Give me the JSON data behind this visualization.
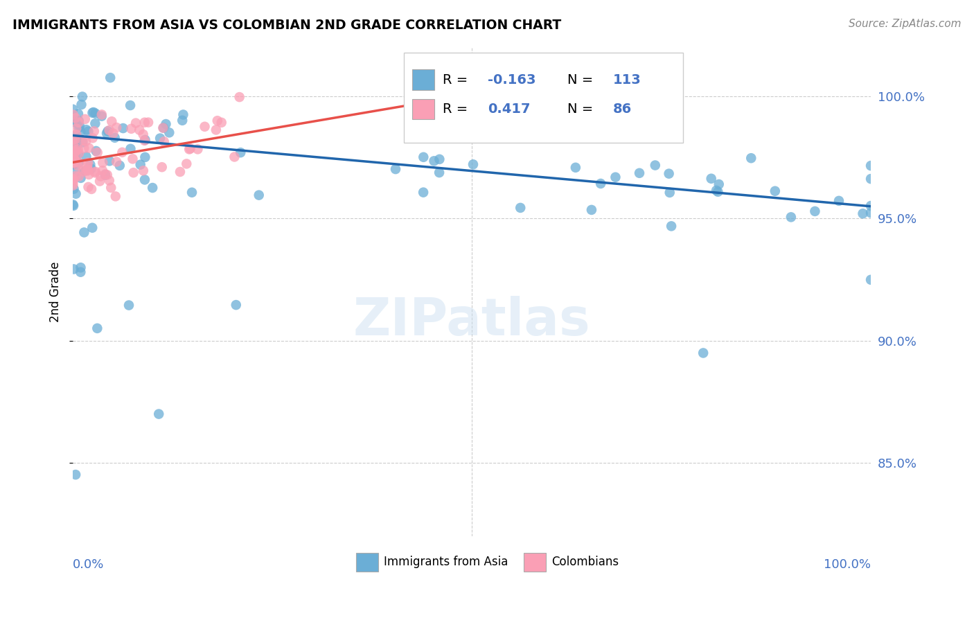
{
  "title": "IMMIGRANTS FROM ASIA VS COLOMBIAN 2ND GRADE CORRELATION CHART",
  "source": "Source: ZipAtlas.com",
  "ylabel": "2nd Grade",
  "ytick_values": [
    1.0,
    0.95,
    0.9,
    0.85
  ],
  "xlim": [
    0.0,
    1.0
  ],
  "ylim": [
    0.82,
    1.02
  ],
  "legend_blue_label": "Immigrants from Asia",
  "legend_pink_label": "Colombians",
  "blue_R": "-0.163",
  "blue_N": "113",
  "pink_R": "0.417",
  "pink_N": "86",
  "blue_color": "#6baed6",
  "pink_color": "#fa9fb5",
  "blue_line_color": "#2166ac",
  "pink_line_color": "#e8504a",
  "watermark": "ZIPatlas",
  "blue_trend_y_start": 0.984,
  "blue_trend_y_end": 0.955,
  "pink_trend_y_start": 0.973,
  "pink_trend_y_end": 0.998,
  "pink_trend_x_end": 0.45
}
